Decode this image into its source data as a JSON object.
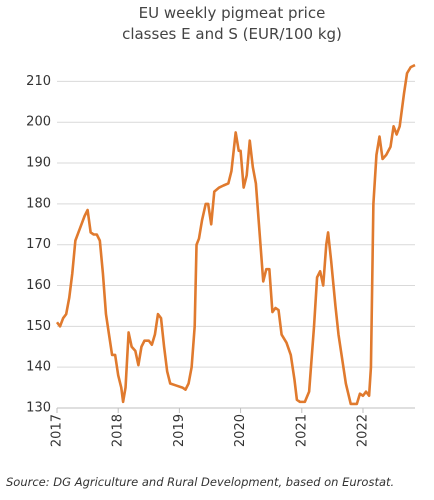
{
  "chart_data": {
    "type": "line",
    "title": [
      "EU weekly pigmeat price",
      "classes E and S (EUR/100 kg)"
    ],
    "source": "Source: DG Agriculture and Rural Development, based on Eurostat.",
    "xlim": [
      2017,
      2022.85
    ],
    "xticks": [
      2017,
      2018,
      2019,
      2020,
      2021,
      2022
    ],
    "ylim": [
      130,
      215
    ],
    "yticks": [
      130,
      140,
      150,
      160,
      170,
      180,
      190,
      200,
      210
    ],
    "grid": true,
    "series": [
      {
        "color": "#e07a2e",
        "x": [
          2017.0,
          2017.05,
          2017.1,
          2017.15,
          2017.2,
          2017.25,
          2017.3,
          2017.35,
          2017.4,
          2017.45,
          2017.5,
          2017.55,
          2017.6,
          2017.65,
          2017.7,
          2017.75,
          2017.8,
          2017.85,
          2017.9,
          2017.95,
          2018.0,
          2018.05,
          2018.08,
          2018.12,
          2018.17,
          2018.22,
          2018.28,
          2018.33,
          2018.38,
          2018.43,
          2018.5,
          2018.55,
          2018.6,
          2018.65,
          2018.7,
          2018.75,
          2018.8,
          2018.85,
          2018.95,
          2019.05,
          2019.1,
          2019.15,
          2019.2,
          2019.25,
          2019.28,
          2019.32,
          2019.37,
          2019.43,
          2019.47,
          2019.52,
          2019.57,
          2019.65,
          2019.72,
          2019.8,
          2019.85,
          2019.92,
          2019.97,
          2020.0,
          2020.05,
          2020.1,
          2020.15,
          2020.2,
          2020.25,
          2020.3,
          2020.37,
          2020.42,
          2020.47,
          2020.52,
          2020.57,
          2020.62,
          2020.67,
          2020.75,
          2020.82,
          2020.88,
          2020.92,
          2020.97,
          2021.05,
          2021.12,
          2021.2,
          2021.25,
          2021.3,
          2021.35,
          2021.4,
          2021.43,
          2021.48,
          2021.55,
          2021.6,
          2021.65,
          2021.72,
          2021.8,
          2021.9,
          2021.95,
          2022.0,
          2022.05,
          2022.1,
          2022.13,
          2022.17,
          2022.22,
          2022.27,
          2022.32,
          2022.38,
          2022.45,
          2022.5,
          2022.55,
          2022.6,
          2022.67,
          2022.72,
          2022.78,
          2022.85
        ],
        "values": [
          151,
          150,
          152,
          153,
          157,
          163,
          171,
          173,
          175,
          177,
          178.5,
          173,
          172.5,
          172.5,
          171,
          163,
          153,
          148,
          143,
          143,
          138,
          135,
          131.5,
          135,
          148.5,
          145,
          144,
          140.5,
          145,
          146.5,
          146.5,
          145.5,
          148,
          153,
          152,
          145,
          139,
          136,
          135.5,
          135,
          134.5,
          136,
          140,
          150,
          170,
          171.5,
          176,
          180,
          180,
          175,
          183,
          184,
          184.5,
          185,
          188,
          197.5,
          193,
          193,
          184,
          187,
          195.5,
          189,
          185,
          175,
          161,
          164,
          164,
          153.5,
          154.5,
          154,
          148,
          146,
          143,
          137,
          132,
          131.5,
          131.5,
          134,
          150,
          162,
          163.5,
          160,
          170,
          173,
          166,
          155,
          148,
          143,
          136,
          131,
          131,
          133.5,
          133,
          134,
          133,
          140,
          180,
          192,
          196.5,
          191,
          192,
          194,
          199,
          197,
          199,
          207,
          212,
          213.5,
          214
        ]
      }
    ]
  }
}
